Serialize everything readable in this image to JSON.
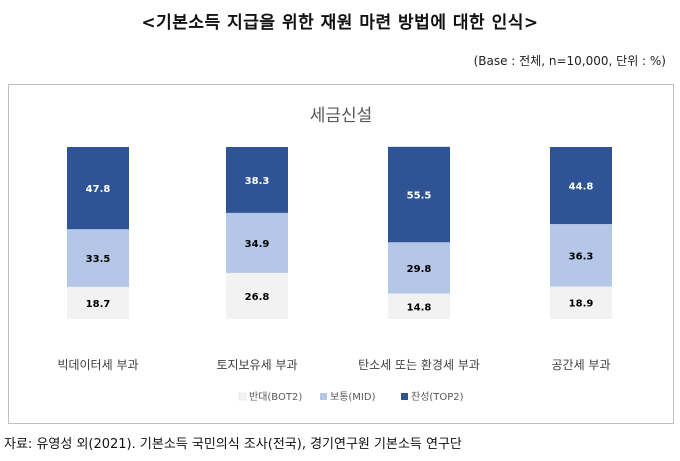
{
  "header": {
    "title": "<기본소득 지급을 위한 재원 마련 방법에 대한 인식>",
    "base_note": "(Base : 전체, n=10,000, 단위 : %)"
  },
  "footer": {
    "source": "자료: 유영성 외(2021). 기본소득 국민의식 조사(전국), 경기연구원 기본소득 연구단"
  },
  "chart_data": {
    "type": "bar",
    "stacked": true,
    "title": "세금신설",
    "categories": [
      "빅데이터세 부과",
      "토지보유세 부과",
      "탄소세 또는 환경세 부과",
      "공간세 부과"
    ],
    "series": [
      {
        "name": "반대(BOT2)",
        "values": [
          18.7,
          26.8,
          14.8,
          18.9
        ],
        "color": "#f2f2f2",
        "label_color": "#000000"
      },
      {
        "name": "보통(MID)",
        "values": [
          33.5,
          34.9,
          29.8,
          36.3
        ],
        "color": "#b4c7e7",
        "label_color": "#000000"
      },
      {
        "name": "찬성(TOP2)",
        "values": [
          47.8,
          38.3,
          55.5,
          44.8
        ],
        "color": "#2f5496",
        "label_color": "#ffffff"
      }
    ],
    "ylim": [
      0,
      100
    ],
    "grid": false,
    "legend": "bottom"
  }
}
